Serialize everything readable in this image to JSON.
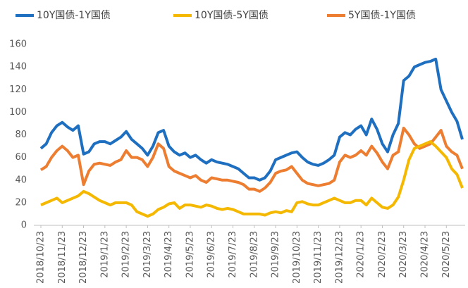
{
  "chart_data": {
    "type": "line",
    "categories": [
      "2018/10/23",
      null,
      null,
      null,
      "2018/11/23",
      null,
      null,
      null,
      "2018/12/23",
      null,
      null,
      null,
      "2019/1/23",
      null,
      null,
      null,
      "2019/2/23",
      null,
      null,
      null,
      "2019/3/23",
      null,
      null,
      null,
      "2019/4/23",
      null,
      null,
      null,
      "2019/5/23",
      null,
      null,
      null,
      "2019/6/23",
      null,
      null,
      null,
      "2019/7/23",
      null,
      null,
      null,
      "2019/8/23",
      null,
      null,
      null,
      "2019/9/23",
      null,
      null,
      null,
      "2019/10/23",
      null,
      null,
      null,
      "2019/11/23",
      null,
      null,
      null,
      "2019/12/23",
      null,
      null,
      null,
      "2020/1/23",
      null,
      null,
      null,
      "2020/2/23",
      null,
      null,
      null,
      "2020/3/23",
      null,
      null,
      null,
      "2020/4/23",
      null,
      null,
      null,
      "2020/5/23",
      null,
      null,
      null
    ],
    "series": [
      {
        "name": "10Y国债-1Y国债",
        "color": "#1f6fc0",
        "values": [
          68,
          72,
          82,
          88,
          91,
          87,
          84,
          88,
          63,
          65,
          72,
          74,
          74,
          72,
          75,
          78,
          83,
          76,
          72,
          68,
          62,
          70,
          82,
          84,
          70,
          65,
          62,
          64,
          60,
          62,
          58,
          55,
          58,
          56,
          55,
          54,
          52,
          50,
          46,
          42,
          42,
          40,
          42,
          48,
          58,
          60,
          62,
          64,
          65,
          60,
          56,
          54,
          53,
          55,
          58,
          62,
          78,
          82,
          80,
          85,
          88,
          80,
          94,
          85,
          72,
          65,
          80,
          90,
          128,
          132,
          140,
          142,
          144,
          145,
          147,
          120,
          110,
          100,
          92,
          76
        ]
      },
      {
        "name": "10Y国债-5Y国债",
        "color": "#f5b800",
        "values": [
          18,
          20,
          22,
          24,
          20,
          22,
          24,
          26,
          30,
          28,
          25,
          22,
          20,
          18,
          20,
          20,
          20,
          18,
          12,
          10,
          8,
          10,
          14,
          16,
          19,
          20,
          15,
          18,
          18,
          17,
          16,
          18,
          17,
          15,
          14,
          15,
          14,
          12,
          10,
          10,
          10,
          10,
          9,
          11,
          12,
          11,
          13,
          12,
          20,
          21,
          19,
          18,
          18,
          20,
          22,
          24,
          22,
          20,
          20,
          22,
          22,
          18,
          24,
          20,
          16,
          15,
          18,
          25,
          40,
          58,
          68,
          70,
          72,
          74,
          70,
          65,
          60,
          50,
          45,
          33
        ]
      },
      {
        "name": "5Y国债-1Y国债",
        "color": "#ec7d31",
        "values": [
          49,
          52,
          60,
          66,
          70,
          66,
          60,
          62,
          36,
          48,
          54,
          55,
          54,
          53,
          56,
          58,
          66,
          60,
          60,
          58,
          52,
          60,
          72,
          68,
          52,
          48,
          46,
          44,
          42,
          44,
          40,
          38,
          42,
          41,
          40,
          40,
          39,
          38,
          36,
          32,
          32,
          30,
          33,
          38,
          46,
          48,
          49,
          52,
          46,
          40,
          37,
          36,
          35,
          36,
          37,
          40,
          56,
          62,
          60,
          62,
          66,
          62,
          70,
          64,
          56,
          50,
          62,
          65,
          86,
          80,
          72,
          68,
          70,
          72,
          78,
          84,
          70,
          65,
          62,
          50
        ]
      }
    ],
    "ylim": [
      0,
      160
    ],
    "yticks": [
      0,
      20,
      40,
      60,
      80,
      100,
      120,
      140,
      160
    ],
    "grid": false,
    "legend": "top"
  }
}
